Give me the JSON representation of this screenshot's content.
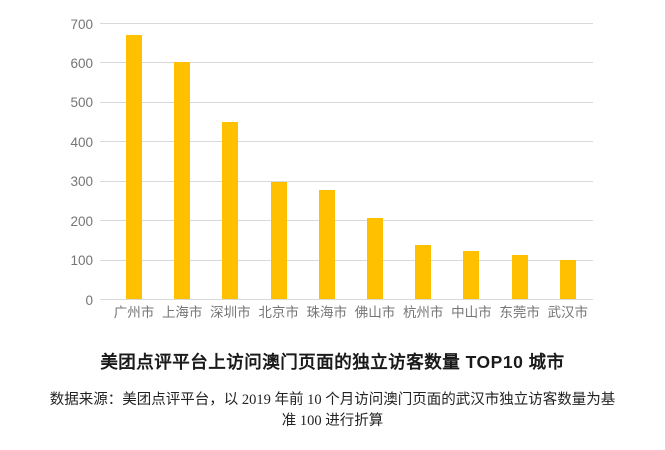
{
  "chart_data": {
    "type": "bar",
    "categories": [
      "广州市",
      "上海市",
      "深圳市",
      "北京市",
      "珠海市",
      "佛山市",
      "杭州市",
      "中山市",
      "东莞市",
      "武汉市"
    ],
    "values": [
      670,
      600,
      449,
      297,
      277,
      206,
      136,
      122,
      111,
      100
    ],
    "title": "美团点评平台上访问澳门页面的独立访客数量 TOP10 城市",
    "xlabel": "",
    "ylabel": "",
    "ylim": [
      0,
      700
    ],
    "yticks": [
      0,
      100,
      200,
      300,
      400,
      500,
      600,
      700
    ],
    "grid": true,
    "legend": "none",
    "bar_color": "#FFC000",
    "gridline_color": "#D9D9D9",
    "axis_label_color": "#757575"
  },
  "source": {
    "line1": "数据来源：美团点评平台，以 2019 年前 10 个月访问澳门页面的武汉市独立访客数量为基",
    "line2": "准 100 进行折算"
  }
}
